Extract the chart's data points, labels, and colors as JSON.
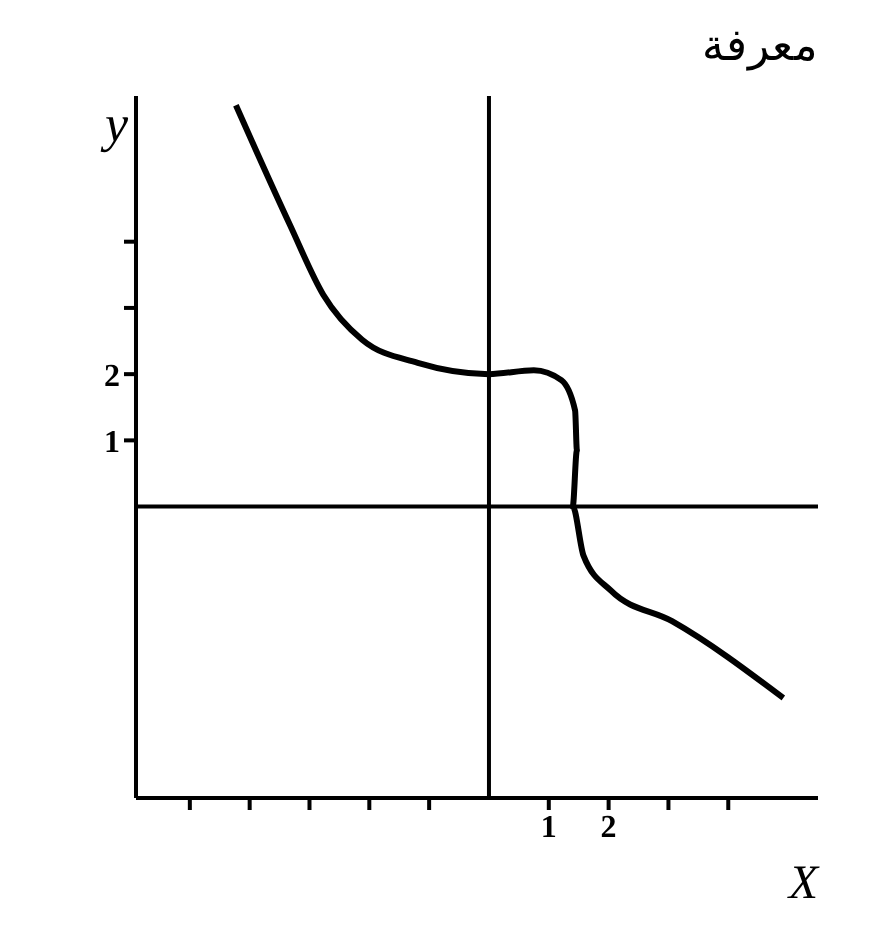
{
  "chart_data": {
    "type": "line",
    "annotations": [
      "معرفة"
    ],
    "xlabel": "X",
    "ylabel": "y",
    "x": [
      -4.23,
      -3.33,
      -2.77,
      -2.12,
      -1.19,
      0,
      0.75,
      1.21,
      1.44,
      1.47,
      1.4,
      1.58,
      2.04,
      3.06,
      4.92
    ],
    "series": [
      {
        "color": "#000000",
        "values": [
          6.06,
          4.26,
          3.2,
          2.52,
          2.17,
          2.0,
          2.06,
          1.91,
          1.45,
          0.85,
          0,
          -0.74,
          -1.27,
          -1.73,
          -2.89
        ]
      }
    ],
    "xlim": [
      -5.9,
      5.5
    ],
    "ylim": [
      -4.4,
      6.2
    ],
    "xticks": [
      {
        "value": -5,
        "label": null
      },
      {
        "value": -4,
        "label": null
      },
      {
        "value": -3,
        "label": null
      },
      {
        "value": -2,
        "label": null
      },
      {
        "value": -1,
        "label": null
      },
      1,
      2,
      {
        "value": 3,
        "label": null
      },
      {
        "value": 4,
        "label": null
      }
    ],
    "yticks": [
      1,
      2,
      {
        "value": 3,
        "label": null
      },
      {
        "value": 4,
        "label": null
      }
    ],
    "grid": false,
    "legend": false,
    "marker": "none",
    "line_style": "solid"
  }
}
